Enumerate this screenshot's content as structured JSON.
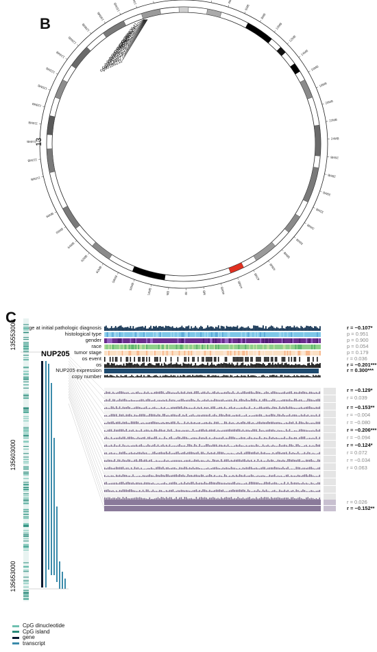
{
  "panel_b": {
    "label": "B",
    "chromosome_label": "13",
    "cg_ids": [
      "cg26963541",
      "cg01983524",
      "cg07499633",
      "cg16839611",
      "cg27060588",
      "cg15127859",
      "cg00726218",
      "cg04116140",
      "cg23144877",
      "cg00186211"
    ],
    "ring_labels": [
      {
        "text": "110MB",
        "angle": -103
      },
      {
        "text": "112MB",
        "angle": -96
      },
      {
        "text": "114MB",
        "angle": -89
      },
      {
        "text": "116MB",
        "angle": -82
      },
      {
        "text": "118MB",
        "angle": -75
      },
      {
        "text": "120MB",
        "angle": -68
      },
      {
        "text": "122MB",
        "angle": -61
      },
      {
        "text": "124MB",
        "angle": -54
      },
      {
        "text": "126MB",
        "angle": -47
      },
      {
        "text": "128MB",
        "angle": -40
      },
      {
        "text": "130MB",
        "angle": -33
      },
      {
        "text": "132MB",
        "angle": -26
      },
      {
        "text": "134MB",
        "angle": -19
      },
      {
        "text": "136MB",
        "angle": -12
      },
      {
        "text": "138MB",
        "angle": -5
      },
      {
        "text": "0MB",
        "angle": 4
      },
      {
        "text": "2MB",
        "angle": 11
      },
      {
        "text": "4MB",
        "angle": 18
      },
      {
        "text": "6MB",
        "angle": 25
      },
      {
        "text": "8MB",
        "angle": 32
      },
      {
        "text": "10MB",
        "angle": 39
      },
      {
        "text": "12MB",
        "angle": 46
      },
      {
        "text": "14MB",
        "angle": 53
      },
      {
        "text": "16MB",
        "angle": 60
      },
      {
        "text": "18MB",
        "angle": 67
      },
      {
        "text": "20MB",
        "angle": 74
      },
      {
        "text": "22MB",
        "angle": 81
      },
      {
        "text": "24MB",
        "angle": 88
      },
      {
        "text": "26MB",
        "angle": 95
      },
      {
        "text": "28MB",
        "angle": 102
      },
      {
        "text": "30MB",
        "angle": 109
      },
      {
        "text": "32MB",
        "angle": 116
      },
      {
        "text": "34MB",
        "angle": 123
      },
      {
        "text": "36MB",
        "angle": 130
      },
      {
        "text": "38MB",
        "angle": 137
      },
      {
        "text": "40MB",
        "angle": 144
      },
      {
        "text": "42MB",
        "angle": 151
      },
      {
        "text": "44MB",
        "angle": 158
      },
      {
        "text": "46MB",
        "angle": 165
      },
      {
        "text": "48MB",
        "angle": 172
      },
      {
        "text": "50MB",
        "angle": 179
      },
      {
        "text": "52MB",
        "angle": 186
      },
      {
        "text": "54MB",
        "angle": 193
      },
      {
        "text": "56MB",
        "angle": 200
      },
      {
        "text": "58MB",
        "angle": 207
      },
      {
        "text": "60MB",
        "angle": 214
      },
      {
        "text": "62MB",
        "angle": 221
      },
      {
        "text": "64MB",
        "angle": 228
      },
      {
        "text": "66MB",
        "angle": 235
      },
      {
        "text": "68MB",
        "angle": 242
      }
    ],
    "bands": [
      {
        "start": -102,
        "end": -92,
        "color": "#7a7a7a"
      },
      {
        "start": -86,
        "end": -78,
        "color": "#5a5a5a"
      },
      {
        "start": -70,
        "end": -62,
        "color": "#8c8c8c"
      },
      {
        "start": -55,
        "end": -45,
        "color": "#6a6a6a"
      },
      {
        "start": -36,
        "end": -26,
        "color": "#7a7a7a"
      },
      {
        "start": -18,
        "end": -10,
        "color": "#9a9a9a"
      },
      {
        "start": -2,
        "end": 2,
        "color": "#cfcfcf"
      },
      {
        "start": 10,
        "end": 16,
        "color": "#aaaaaa"
      },
      {
        "start": 28,
        "end": 40,
        "color": "#000000"
      },
      {
        "start": 45,
        "end": 48,
        "color": "#111111"
      },
      {
        "start": 54,
        "end": 58,
        "color": "#000000"
      },
      {
        "start": 62,
        "end": 70,
        "color": "#8a8a8a"
      },
      {
        "start": 82,
        "end": 95,
        "color": "#6a6a6a"
      },
      {
        "start": 100,
        "end": 115,
        "color": "#7a7a7a"
      },
      {
        "start": 122,
        "end": 130,
        "color": "#8a8a8a"
      },
      {
        "start": 138,
        "end": 148,
        "color": "#9a9a9a"
      },
      {
        "start": 154,
        "end": 160,
        "color": "#e03020"
      },
      {
        "start": 188,
        "end": 202,
        "color": "#000000"
      },
      {
        "start": 213,
        "end": 222,
        "color": "#8a8a8a"
      },
      {
        "start": 232,
        "end": 242,
        "color": "#7a7a7a"
      }
    ]
  },
  "panel_c": {
    "label": "C",
    "clinical_rows": [
      {
        "name": "age at initial pathologic diagnosis",
        "stat": "r = −0.107*",
        "bold": true,
        "type": "bar",
        "color": "#0e2e4e"
      },
      {
        "name": "histological type",
        "stat": "p = 0.951",
        "bold": false,
        "type": "strip",
        "colors": [
          "#7dc7e8",
          "#5aa8d8",
          "#a0d8f0"
        ]
      },
      {
        "name": "gender",
        "stat": "p = 0.900",
        "bold": false,
        "type": "strip",
        "colors": [
          "#6a2d8c",
          "#9c6ac8",
          "#4b1a6e"
        ]
      },
      {
        "name": "race",
        "stat": "p = 0.054",
        "bold": false,
        "type": "strip",
        "colors": [
          "#8fd08a",
          "#5ab36b",
          "#c0e0a0"
        ]
      },
      {
        "name": "tumor stage",
        "stat": "p = 0.179",
        "bold": false,
        "type": "strip",
        "colors": [
          "#fbe0c4",
          "#f7b58a",
          "#fde8d8"
        ]
      },
      {
        "name": "os event",
        "stat": "r = 0.036",
        "bold": false,
        "type": "event",
        "colors": [
          "#111111",
          "#ffffff"
        ]
      },
      {
        "name": "os",
        "stat": "r = −0.201***",
        "bold": true,
        "type": "bar",
        "color": "#111111"
      }
    ],
    "expression_rows": [
      {
        "name": "NUP205 expression",
        "stat": "r = 0.300***",
        "bold": true
      },
      {
        "name": "copy number",
        "stat": "",
        "bold": false
      }
    ],
    "methylation_stats": [
      {
        "text": "r = −0.129*",
        "bold": true
      },
      {
        "text": "r = 0.039",
        "bold": false
      },
      {
        "text": "r = −0.153**",
        "bold": true
      },
      {
        "text": "r = −0.004",
        "bold": false
      },
      {
        "text": "r = −0.080",
        "bold": false
      },
      {
        "text": "r = −0.206***",
        "bold": true
      },
      {
        "text": "r = −0.094",
        "bold": false
      },
      {
        "text": "r = −0.124*",
        "bold": true
      },
      {
        "text": "r = 0.072",
        "bold": false
      },
      {
        "text": "r = −0.034",
        "bold": false
      },
      {
        "text": "r = 0.063",
        "bold": false
      }
    ],
    "bottom_stats": [
      {
        "text": "r = 0.026",
        "bold": false
      },
      {
        "text": "r = −0.152**",
        "bold": true
      }
    ],
    "gene_name": "NUP205",
    "coord_top": "135553000",
    "coord_mid": "135603000",
    "coord_bottom": "135653000"
  },
  "legend": [
    {
      "label": "CpG dinucleotide",
      "color": "#6fc0b0"
    },
    {
      "label": "CpG island",
      "color": "#2b8a7a"
    },
    {
      "label": "gene",
      "color": "#0a1a30"
    },
    {
      "label": "transcript",
      "color": "#3a8aaa"
    }
  ]
}
